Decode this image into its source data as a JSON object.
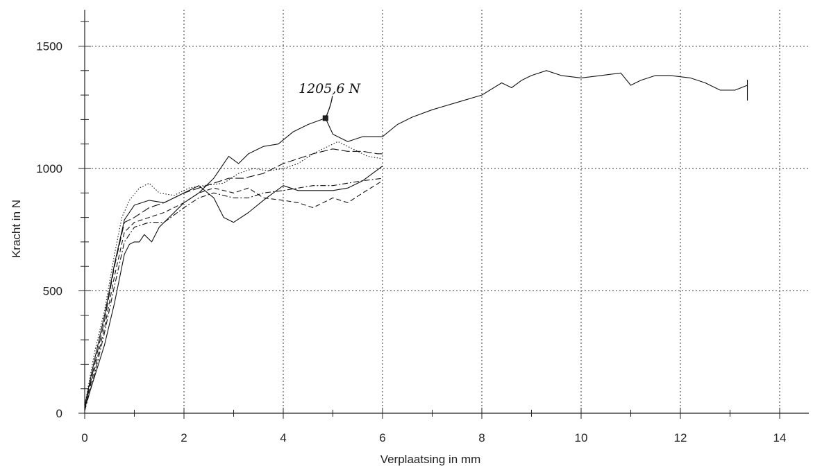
{
  "chart_data": {
    "type": "line",
    "title": "",
    "xlabel": "Verplaatsing in mm",
    "ylabel": "Kracht in N",
    "xlim": [
      0,
      14.6
    ],
    "ylim": [
      0,
      1650
    ],
    "x_ticks": [
      "0",
      "2",
      "4",
      "6",
      "8",
      "10",
      "12",
      "14"
    ],
    "y_ticks": [
      "0",
      "500",
      "1000",
      "1500"
    ],
    "grid": true,
    "legend": "none",
    "annotation": {
      "text": "1205,6 N",
      "x": 4.85,
      "y": 1205.6
    },
    "series": [
      {
        "style": "solid",
        "x": [
          0,
          0.2,
          0.4,
          0.6,
          0.8,
          0.9,
          1.0,
          1.1,
          1.2,
          1.35,
          1.5,
          1.7,
          2.0,
          2.3,
          2.6,
          2.9,
          3.1,
          3.3,
          3.6,
          3.9,
          4.2,
          4.5,
          4.85,
          5.0,
          5.3,
          5.6,
          6.0,
          6.3,
          6.6,
          7.0,
          7.5,
          8.0,
          8.4,
          8.6,
          8.8,
          9.0,
          9.3,
          9.6,
          10.0,
          10.4,
          10.8,
          11.0,
          11.2,
          11.5,
          11.8,
          12.2,
          12.5,
          12.8,
          13.1,
          13.35
        ],
        "y": [
          20,
          150,
          280,
          450,
          650,
          690,
          700,
          700,
          730,
          700,
          760,
          800,
          860,
          900,
          960,
          1050,
          1020,
          1060,
          1090,
          1100,
          1150,
          1180,
          1205.6,
          1140,
          1110,
          1130,
          1130,
          1180,
          1210,
          1240,
          1270,
          1300,
          1350,
          1330,
          1360,
          1380,
          1400,
          1380,
          1370,
          1380,
          1390,
          1340,
          1360,
          1380,
          1380,
          1370,
          1350,
          1320,
          1320,
          1340
        ]
      },
      {
        "style": "dotted",
        "x": [
          0,
          0.2,
          0.4,
          0.6,
          0.75,
          0.9,
          1.1,
          1.3,
          1.5,
          1.8,
          2.1,
          2.4,
          2.8,
          3.1,
          3.4,
          3.7,
          4.0,
          4.3,
          4.6,
          4.9,
          5.1,
          5.4,
          5.7,
          6.0
        ],
        "y": [
          30,
          250,
          420,
          650,
          800,
          870,
          920,
          940,
          900,
          890,
          920,
          930,
          940,
          980,
          1000,
          990,
          1000,
          1020,
          1060,
          1090,
          1110,
          1080,
          1050,
          1040
        ]
      },
      {
        "style": "dashed",
        "x": [
          0,
          0.2,
          0.4,
          0.6,
          0.8,
          1.0,
          1.3,
          1.6,
          2.0,
          2.3,
          2.6,
          3.0,
          3.3,
          3.6,
          4.0,
          4.3,
          4.6,
          5.0,
          5.3,
          5.6,
          6.0
        ],
        "y": [
          20,
          180,
          350,
          560,
          740,
          780,
          800,
          820,
          860,
          900,
          920,
          900,
          920,
          880,
          870,
          860,
          840,
          880,
          860,
          900,
          950
        ]
      },
      {
        "style": "dashdot",
        "x": [
          0,
          0.2,
          0.4,
          0.6,
          0.8,
          1.0,
          1.3,
          1.6,
          2.0,
          2.3,
          2.6,
          3.0,
          3.3,
          3.6,
          4.0,
          4.3,
          4.6,
          5.0,
          5.3,
          5.6,
          6.0
        ],
        "y": [
          10,
          160,
          330,
          520,
          700,
          760,
          780,
          780,
          840,
          880,
          900,
          880,
          880,
          900,
          910,
          920,
          930,
          930,
          940,
          950,
          960
        ]
      },
      {
        "style": "longdash",
        "x": [
          0,
          0.2,
          0.4,
          0.6,
          0.8,
          1.0,
          1.3,
          1.6,
          2.0,
          2.3,
          2.6,
          2.9,
          3.2,
          3.6,
          4.0,
          4.3,
          4.6,
          5.0,
          5.3,
          5.6,
          5.9,
          6.0
        ],
        "y": [
          20,
          200,
          380,
          600,
          780,
          800,
          840,
          860,
          900,
          920,
          940,
          960,
          960,
          980,
          1020,
          1040,
          1060,
          1080,
          1070,
          1070,
          1060,
          1060
        ]
      },
      {
        "style": "solid-thin",
        "x": [
          0,
          0.2,
          0.4,
          0.6,
          0.8,
          1.0,
          1.3,
          1.6,
          2.0,
          2.3,
          2.6,
          2.8,
          3.0,
          3.3,
          3.6,
          4.0,
          4.3,
          4.6,
          5.0,
          5.3,
          5.6,
          6.0
        ],
        "y": [
          30,
          220,
          400,
          610,
          790,
          850,
          870,
          860,
          900,
          930,
          880,
          800,
          780,
          820,
          870,
          930,
          910,
          910,
          910,
          920,
          950,
          1010
        ]
      }
    ]
  }
}
